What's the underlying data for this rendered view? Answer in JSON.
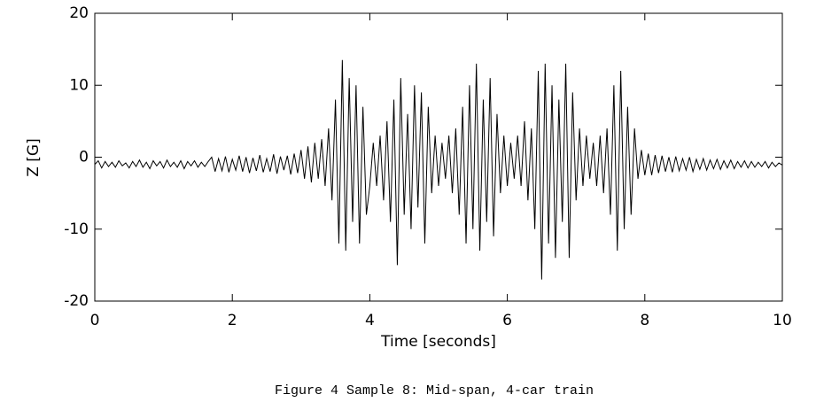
{
  "chart_data": {
    "type": "line",
    "x": [
      0,
      0.05,
      0.1,
      0.15,
      0.2,
      0.25,
      0.3,
      0.35,
      0.4,
      0.45,
      0.5,
      0.55,
      0.6,
      0.65,
      0.7,
      0.75,
      0.8,
      0.85,
      0.9,
      0.95,
      1,
      1.05,
      1.1,
      1.15,
      1.2,
      1.25,
      1.3,
      1.35,
      1.4,
      1.45,
      1.5,
      1.55,
      1.6,
      1.65,
      1.7,
      1.75,
      1.8,
      1.85,
      1.9,
      1.95,
      2,
      2.05,
      2.1,
      2.15,
      2.2,
      2.25,
      2.3,
      2.35,
      2.4,
      2.45,
      2.5,
      2.55,
      2.6,
      2.65,
      2.7,
      2.75,
      2.8,
      2.85,
      2.9,
      2.95,
      3,
      3.05,
      3.1,
      3.15,
      3.2,
      3.25,
      3.3,
      3.35,
      3.4,
      3.45,
      3.5,
      3.55,
      3.6,
      3.65,
      3.7,
      3.75,
      3.8,
      3.85,
      3.9,
      3.95,
      4,
      4.05,
      4.1,
      4.15,
      4.2,
      4.25,
      4.3,
      4.35,
      4.4,
      4.45,
      4.5,
      4.55,
      4.6,
      4.65,
      4.7,
      4.75,
      4.8,
      4.85,
      4.9,
      4.95,
      5,
      5.05,
      5.1,
      5.15,
      5.2,
      5.25,
      5.3,
      5.35,
      5.4,
      5.45,
      5.5,
      5.55,
      5.6,
      5.65,
      5.7,
      5.75,
      5.8,
      5.85,
      5.9,
      5.95,
      6,
      6.05,
      6.1,
      6.15,
      6.2,
      6.25,
      6.3,
      6.35,
      6.4,
      6.45,
      6.5,
      6.55,
      6.6,
      6.65,
      6.7,
      6.75,
      6.8,
      6.85,
      6.9,
      6.95,
      7,
      7.05,
      7.1,
      7.15,
      7.2,
      7.25,
      7.3,
      7.35,
      7.4,
      7.45,
      7.5,
      7.55,
      7.6,
      7.65,
      7.7,
      7.75,
      7.8,
      7.85,
      7.9,
      7.95,
      8,
      8.05,
      8.1,
      8.15,
      8.2,
      8.25,
      8.3,
      8.35,
      8.4,
      8.45,
      8.5,
      8.55,
      8.6,
      8.65,
      8.7,
      8.75,
      8.8,
      8.85,
      8.9,
      8.95,
      9,
      9.05,
      9.1,
      9.15,
      9.2,
      9.25,
      9.3,
      9.35,
      9.4,
      9.45,
      9.5,
      9.55,
      9.6,
      9.65,
      9.7,
      9.75,
      9.8,
      9.85,
      9.9,
      9.95,
      10
    ],
    "series": [
      {
        "color": "#000000",
        "values": [
          -1,
          -0.5,
          -1.5,
          -0.6,
          -1.3,
          -0.7,
          -1.4,
          -0.5,
          -1.2,
          -0.8,
          -1.5,
          -0.6,
          -1.3,
          -0.4,
          -1.4,
          -0.7,
          -1.6,
          -0.5,
          -1.2,
          -0.6,
          -1.5,
          -0.4,
          -1.3,
          -0.7,
          -1.4,
          -0.5,
          -1.6,
          -0.6,
          -1.2,
          -0.5,
          -1.4,
          -0.7,
          -1.3,
          -0.6,
          0,
          -2,
          -0.2,
          -1.9,
          0.1,
          -2.1,
          -0.3,
          -1.8,
          0.2,
          -2,
          0,
          -2.2,
          -0.1,
          -1.9,
          0.3,
          -2.1,
          -0.2,
          -2,
          0.4,
          -2.3,
          0.1,
          -1.8,
          0.2,
          -2.4,
          0.5,
          -2.2,
          1,
          -3,
          1.5,
          -3.5,
          2,
          -3,
          2.5,
          -4,
          4,
          -6,
          8,
          -12,
          13.5,
          -13,
          11,
          -9,
          10,
          -12,
          7,
          -8,
          -4,
          2,
          -4,
          3,
          -6,
          5,
          -9,
          8,
          -15,
          11,
          -8,
          6,
          -10,
          10,
          -7,
          9,
          -12,
          7,
          -5,
          3,
          -4,
          2,
          -3,
          3,
          -5,
          4,
          -8,
          7,
          -12,
          10,
          -10,
          13,
          -13,
          8,
          -9,
          11,
          -11,
          6,
          -5,
          3,
          -4,
          2,
          -3,
          3,
          -4,
          5,
          -6,
          4,
          -10,
          12,
          -17,
          13,
          -12,
          10,
          -14,
          8,
          -9,
          13,
          -14,
          9,
          -6,
          4,
          -4,
          3,
          -3,
          2,
          -4,
          3,
          -5,
          4,
          -8,
          10,
          -13,
          12,
          -10,
          7,
          -8,
          4,
          -3,
          1,
          -2.5,
          0.5,
          -2.5,
          0.3,
          -2.2,
          0.2,
          -2,
          0,
          -2.1,
          0.1,
          -1.9,
          -0.2,
          -1.8,
          0,
          -2,
          -0.3,
          -1.7,
          -0.2,
          -1.8,
          -0.4,
          -1.6,
          -0.3,
          -1.7,
          -0.5,
          -1.5,
          -0.4,
          -1.6,
          -0.6,
          -1.4,
          -0.5,
          -1.5,
          -0.6,
          -1.4,
          -0.7,
          -1.3,
          -0.6,
          -1.5,
          -0.7,
          -1.3,
          -0.8,
          -1.1
        ]
      }
    ],
    "xlim": [
      0,
      10
    ],
    "ylim": [
      -20,
      20
    ],
    "xticks": [
      0,
      2,
      4,
      6,
      8,
      10
    ],
    "yticks": [
      -20,
      -10,
      0,
      10,
      20
    ],
    "xlabel": "Time [seconds]",
    "ylabel": "Z [G]"
  },
  "caption": "Figure 4 Sample 8: Mid-span, 4-car train"
}
